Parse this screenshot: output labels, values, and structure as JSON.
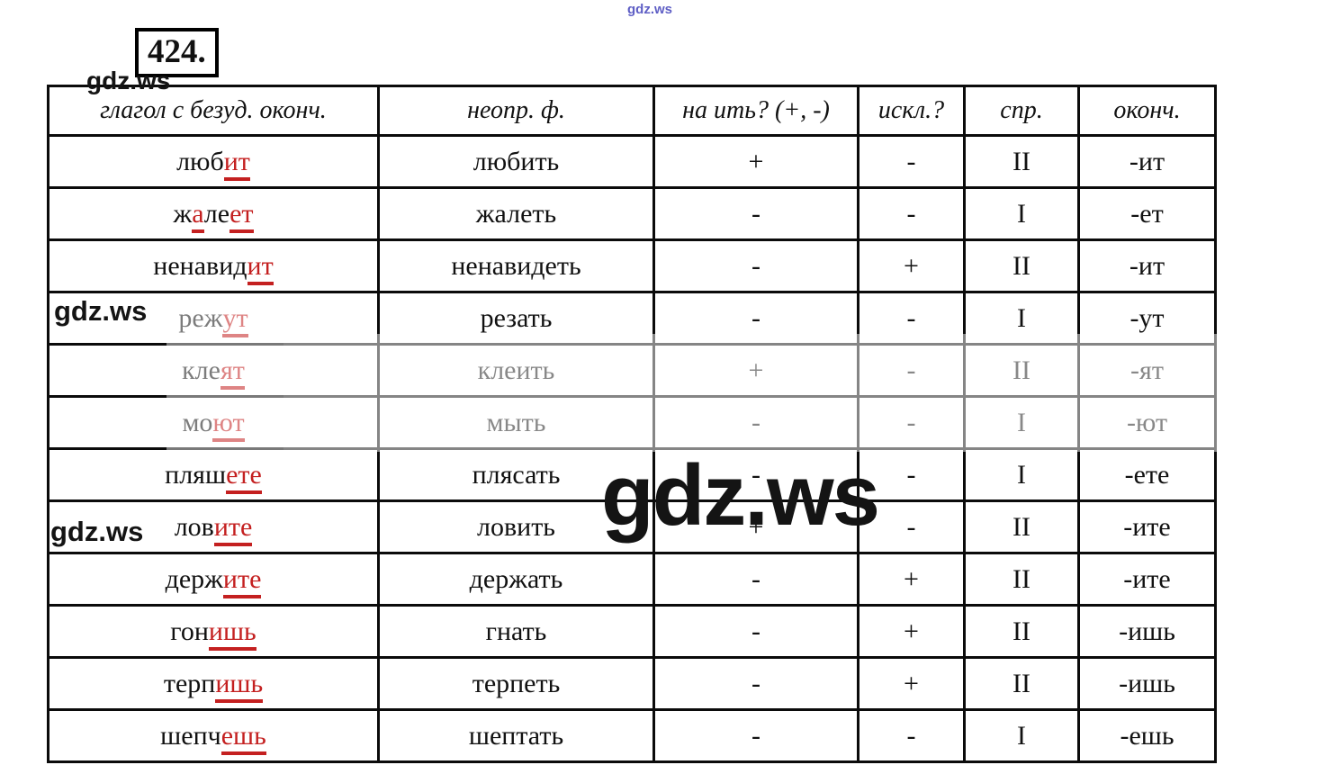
{
  "title": {
    "number": "424."
  },
  "watermarks": {
    "top_blue": "gdz.ws",
    "small": [
      "gdz.ws",
      "gdz.ws",
      "gdz.ws"
    ],
    "giant_black": "gdz.ws",
    "accent_red": "#c42020"
  },
  "table": {
    "headers": [
      "глагол с безуд. оконч.",
      "неопр. ф.",
      "на ить? (+, -)",
      "искл.?",
      "спр.",
      "оконч."
    ],
    "rows": [
      {
        "verb_parts": [
          {
            "text": "люб",
            "highlight": false
          },
          {
            "text": "ит",
            "highlight": true
          }
        ],
        "infinitive": "любить",
        "na_it": "+",
        "iskl": "-",
        "spr": "II",
        "okonch": "-ит"
      },
      {
        "verb_parts": [
          {
            "text": "ж",
            "highlight": false
          },
          {
            "text": "а",
            "highlight": true
          },
          {
            "text": "ле",
            "highlight": false
          },
          {
            "text": "ет",
            "highlight": true
          }
        ],
        "infinitive": "жалеть",
        "na_it": "-",
        "iskl": "-",
        "spr": "I",
        "okonch": "-ет"
      },
      {
        "verb_parts": [
          {
            "text": "ненавид",
            "highlight": false
          },
          {
            "text": "ит",
            "highlight": true
          }
        ],
        "infinitive": "ненавидеть",
        "na_it": "-",
        "iskl": "+",
        "spr": "II",
        "okonch": "-ит"
      },
      {
        "verb_parts": [
          {
            "text": "реж",
            "highlight": false
          },
          {
            "text": "ут",
            "highlight": true
          }
        ],
        "infinitive": "резать",
        "na_it": "-",
        "iskl": "-",
        "spr": "I",
        "okonch": "-ут"
      },
      {
        "verb_parts": [
          {
            "text": "кле",
            "highlight": false
          },
          {
            "text": "ят",
            "highlight": true
          }
        ],
        "infinitive": "клеить",
        "na_it": "+",
        "iskl": "-",
        "spr": "II",
        "okonch": "-ят"
      },
      {
        "verb_parts": [
          {
            "text": "мо",
            "highlight": false
          },
          {
            "text": "ют",
            "highlight": true
          }
        ],
        "infinitive": "мыть",
        "na_it": "-",
        "iskl": "-",
        "spr": "I",
        "okonch": "-ют"
      },
      {
        "verb_parts": [
          {
            "text": "пляш",
            "highlight": false
          },
          {
            "text": "ете",
            "highlight": true
          }
        ],
        "infinitive": "плясать",
        "na_it": "-",
        "iskl": "-",
        "spr": "I",
        "okonch": "-ете"
      },
      {
        "verb_parts": [
          {
            "text": "лов",
            "highlight": false
          },
          {
            "text": "ите",
            "highlight": true
          }
        ],
        "infinitive": "ловить",
        "na_it": "+",
        "iskl": "-",
        "spr": "II",
        "okonch": "-ите"
      },
      {
        "verb_parts": [
          {
            "text": "держ",
            "highlight": false
          },
          {
            "text": "ите",
            "highlight": true
          }
        ],
        "infinitive": "держать",
        "na_it": "-",
        "iskl": "+",
        "spr": "II",
        "okonch": "-ите"
      },
      {
        "verb_parts": [
          {
            "text": "гон",
            "highlight": false
          },
          {
            "text": "ишь",
            "highlight": true
          }
        ],
        "infinitive": "гнать",
        "na_it": "-",
        "iskl": "+",
        "spr": "II",
        "okonch": "-ишь"
      },
      {
        "verb_parts": [
          {
            "text": "терп",
            "highlight": false
          },
          {
            "text": "ишь",
            "highlight": true
          }
        ],
        "infinitive": "терпеть",
        "na_it": "-",
        "iskl": "+",
        "spr": "II",
        "okonch": "-ишь"
      },
      {
        "verb_parts": [
          {
            "text": "шепч",
            "highlight": false
          },
          {
            "text": "ешь",
            "highlight": true
          }
        ],
        "infinitive": "шептать",
        "na_it": "-",
        "iskl": "-",
        "spr": "I",
        "okonch": "-ешь"
      }
    ]
  }
}
